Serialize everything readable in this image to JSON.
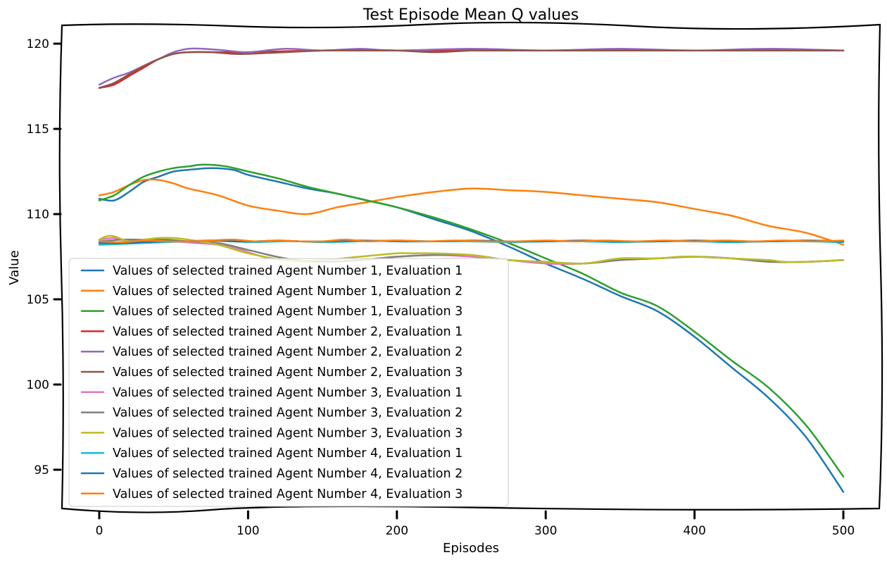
{
  "chart_data": {
    "type": "line",
    "title": "Test Episode Mean Q values",
    "xlabel": "Episodes",
    "ylabel": "Value",
    "xlim": [
      -25,
      525
    ],
    "ylim": [
      92.5,
      121.1
    ],
    "xticks": [
      0,
      100,
      200,
      300,
      400,
      500
    ],
    "yticks": [
      95,
      100,
      105,
      110,
      115,
      120
    ],
    "grid": false,
    "legend_position": "lower-left",
    "series": [
      {
        "name": "Values of selected trained Agent Number 1, Evaluation 1",
        "color": "#1f77b4",
        "x": [
          0,
          10,
          20,
          30,
          40,
          50,
          60,
          75,
          90,
          100,
          120,
          140,
          160,
          180,
          200,
          225,
          250,
          275,
          300,
          325,
          350,
          375,
          400,
          425,
          450,
          475,
          500
        ],
        "y": [
          110.9,
          110.8,
          111.3,
          111.9,
          112.2,
          112.5,
          112.6,
          112.7,
          112.6,
          112.3,
          111.9,
          111.5,
          111.2,
          110.8,
          110.4,
          109.7,
          109.0,
          108.1,
          107.1,
          106.2,
          105.2,
          104.3,
          102.8,
          101.0,
          99.2,
          96.9,
          93.7
        ]
      },
      {
        "name": "Values of selected trained Agent Number 1, Evaluation 2",
        "color": "#ff7f0e",
        "x": [
          0,
          10,
          20,
          30,
          40,
          50,
          60,
          80,
          100,
          120,
          140,
          160,
          180,
          200,
          225,
          250,
          275,
          300,
          325,
          350,
          375,
          400,
          425,
          450,
          475,
          500
        ],
        "y": [
          111.1,
          111.3,
          111.7,
          112.0,
          112.0,
          111.8,
          111.5,
          111.1,
          110.5,
          110.2,
          110.0,
          110.4,
          110.7,
          111.0,
          111.3,
          111.5,
          111.4,
          111.3,
          111.1,
          110.9,
          110.7,
          110.3,
          109.9,
          109.3,
          108.9,
          108.2
        ]
      },
      {
        "name": "Values of selected trained Agent Number 1, Evaluation 3",
        "color": "#2ca02c",
        "x": [
          0,
          10,
          20,
          30,
          40,
          50,
          60,
          70,
          85,
          100,
          120,
          140,
          160,
          180,
          200,
          225,
          250,
          275,
          300,
          325,
          350,
          375,
          400,
          425,
          450,
          475,
          500
        ],
        "y": [
          110.8,
          111.1,
          111.7,
          112.2,
          112.5,
          112.7,
          112.8,
          112.9,
          112.8,
          112.5,
          112.1,
          111.6,
          111.2,
          110.8,
          110.4,
          109.8,
          109.1,
          108.3,
          107.4,
          106.5,
          105.4,
          104.6,
          103.1,
          101.4,
          99.8,
          97.6,
          94.6
        ]
      },
      {
        "name": "Values of selected trained Agent Number 2, Evaluation 1",
        "color": "#d62728",
        "x": [
          0,
          10,
          20,
          30,
          40,
          50,
          60,
          80,
          100,
          150,
          200,
          250,
          300,
          350,
          400,
          450,
          500
        ],
        "y": [
          117.4,
          117.6,
          118.1,
          118.6,
          119.1,
          119.4,
          119.5,
          119.5,
          119.5,
          119.6,
          119.6,
          119.6,
          119.6,
          119.6,
          119.6,
          119.6,
          119.6
        ]
      },
      {
        "name": "Values of selected trained Agent Number 2, Evaluation 2",
        "color": "#9467bd",
        "x": [
          0,
          10,
          20,
          30,
          40,
          50,
          60,
          70,
          85,
          100,
          125,
          150,
          175,
          200,
          250,
          300,
          350,
          400,
          450,
          500
        ],
        "y": [
          117.6,
          118.0,
          118.3,
          118.7,
          119.1,
          119.5,
          119.7,
          119.7,
          119.6,
          119.5,
          119.7,
          119.6,
          119.7,
          119.6,
          119.7,
          119.6,
          119.7,
          119.6,
          119.7,
          119.6
        ]
      },
      {
        "name": "Values of selected trained Agent Number 2, Evaluation 3",
        "color": "#8c564b",
        "x": [
          0,
          10,
          20,
          30,
          40,
          50,
          60,
          75,
          90,
          100,
          125,
          150,
          175,
          200,
          225,
          250,
          275,
          300,
          325,
          350,
          375,
          400,
          425,
          450,
          475,
          500
        ],
        "y": [
          117.4,
          117.7,
          118.2,
          118.7,
          119.1,
          119.4,
          119.5,
          119.5,
          119.4,
          119.4,
          119.5,
          119.6,
          119.6,
          119.6,
          119.5,
          119.6,
          119.6,
          119.6,
          119.6,
          119.6,
          119.6,
          119.6,
          119.6,
          119.6,
          119.6,
          119.6
        ]
      },
      {
        "name": "Values of selected trained Agent Number 3, Evaluation 1",
        "color": "#e377c2",
        "x": [
          0,
          10,
          20,
          35,
          50,
          65,
          80,
          95,
          110,
          125,
          150,
          175,
          200,
          225,
          250,
          275,
          300,
          325,
          350,
          375,
          400,
          425,
          450,
          475,
          500
        ],
        "y": [
          108.5,
          108.6,
          108.4,
          108.5,
          108.4,
          108.3,
          108.2,
          107.9,
          107.5,
          107.3,
          107.2,
          107.3,
          107.5,
          107.6,
          107.5,
          107.3,
          107.1,
          107.1,
          107.3,
          107.4,
          107.5,
          107.4,
          107.2,
          107.2,
          107.3
        ]
      },
      {
        "name": "Values of selected trained Agent Number 3, Evaluation 2",
        "color": "#7f7f7f",
        "x": [
          0,
          15,
          30,
          45,
          60,
          80,
          100,
          125,
          150,
          175,
          200,
          225,
          250,
          275,
          300,
          325,
          350,
          375,
          400,
          425,
          450,
          475,
          500
        ],
        "y": [
          108.4,
          108.5,
          108.5,
          108.5,
          108.4,
          108.3,
          107.9,
          107.4,
          107.2,
          107.3,
          107.5,
          107.6,
          107.6,
          107.3,
          107.2,
          107.1,
          107.3,
          107.4,
          107.5,
          107.4,
          107.2,
          107.2,
          107.3
        ]
      },
      {
        "name": "Values of selected trained Agent Number 3, Evaluation 3",
        "color": "#bcbd22",
        "x": [
          0,
          5,
          10,
          20,
          30,
          40,
          50,
          60,
          80,
          100,
          125,
          150,
          175,
          200,
          210,
          225,
          250,
          275,
          300,
          325,
          350,
          375,
          390,
          400,
          425,
          450,
          460,
          475,
          500
        ],
        "y": [
          108.5,
          108.7,
          108.7,
          108.4,
          108.5,
          108.6,
          108.6,
          108.5,
          108.2,
          107.7,
          107.3,
          107.3,
          107.5,
          107.7,
          107.7,
          107.7,
          107.6,
          107.3,
          107.2,
          107.1,
          107.4,
          107.4,
          107.5,
          107.5,
          107.4,
          107.3,
          107.2,
          107.2,
          107.3
        ]
      },
      {
        "name": "Values of selected trained Agent Number 4, Evaluation 1",
        "color": "#17becf",
        "x": [
          0,
          15,
          30,
          45,
          60,
          75,
          90,
          105,
          120,
          135,
          150,
          175,
          200,
          225,
          250,
          275,
          300,
          325,
          350,
          375,
          400,
          425,
          450,
          475,
          500
        ],
        "y": [
          108.2,
          108.25,
          108.3,
          108.35,
          108.4,
          108.45,
          108.4,
          108.35,
          108.4,
          108.4,
          108.35,
          108.4,
          108.45,
          108.4,
          108.4,
          108.35,
          108.4,
          108.4,
          108.35,
          108.4,
          108.4,
          108.35,
          108.4,
          108.4,
          108.35
        ]
      },
      {
        "name": "Values of selected trained Agent Number 4, Evaluation 2",
        "color": "#1f77b4",
        "x": [
          0,
          15,
          30,
          45,
          60,
          75,
          90,
          105,
          120,
          135,
          150,
          175,
          200,
          225,
          250,
          275,
          300,
          325,
          350,
          375,
          400,
          425,
          450,
          475,
          500
        ],
        "y": [
          108.3,
          108.3,
          108.35,
          108.4,
          108.4,
          108.45,
          108.4,
          108.4,
          108.45,
          108.4,
          108.4,
          108.45,
          108.4,
          108.4,
          108.45,
          108.4,
          108.4,
          108.45,
          108.4,
          108.4,
          108.45,
          108.4,
          108.4,
          108.45,
          108.4
        ]
      },
      {
        "name": "Values of selected trained Agent Number 4, Evaluation 3",
        "color": "#ff7f0e",
        "x": [
          0,
          15,
          30,
          45,
          60,
          75,
          90,
          105,
          120,
          135,
          150,
          165,
          180,
          200,
          220,
          240,
          260,
          280,
          300,
          320,
          340,
          360,
          380,
          400,
          420,
          440,
          460,
          480,
          500
        ],
        "y": [
          108.4,
          108.35,
          108.45,
          108.4,
          108.4,
          108.45,
          108.5,
          108.4,
          108.45,
          108.4,
          108.4,
          108.5,
          108.4,
          108.45,
          108.4,
          108.45,
          108.4,
          108.4,
          108.45,
          108.4,
          108.45,
          108.4,
          108.45,
          108.4,
          108.45,
          108.4,
          108.45,
          108.4,
          108.45
        ]
      }
    ]
  }
}
